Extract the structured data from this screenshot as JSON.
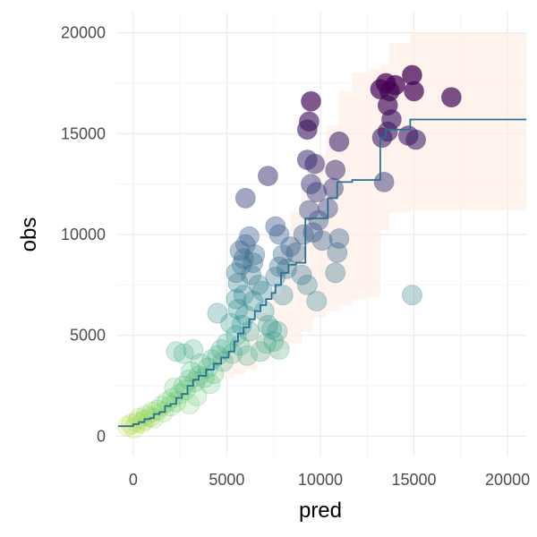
{
  "chart_data": {
    "type": "scatter",
    "title": "",
    "xlabel": "pred",
    "ylabel": "obs",
    "xlim": [
      -900,
      21000
    ],
    "ylim": [
      -1000,
      21000
    ],
    "grid": true,
    "legend": "none",
    "x_ticks": [
      0,
      5000,
      10000,
      15000,
      20000
    ],
    "y_ticks": [
      0,
      5000,
      10000,
      15000,
      20000
    ],
    "x_tick_labels": [
      "0",
      "5000",
      "10000",
      "15000",
      "20000"
    ],
    "y_tick_labels": [
      "0",
      "5000",
      "10000",
      "15000",
      "20000"
    ],
    "colors": {
      "grid_major": "#ebebeb",
      "grid_minor": "#f4f4f4",
      "step_line": "#2c6f8e",
      "band_fill": "#fdeee6",
      "scale_low": "#fde725",
      "scale_mid_low": "#5ec962",
      "scale_mid": "#21918c",
      "scale_mid_high": "#3b528b",
      "scale_high": "#440154"
    },
    "points": [
      {
        "x": -300,
        "y": 500
      },
      {
        "x": -100,
        "y": 600
      },
      {
        "x": 50,
        "y": 400
      },
      {
        "x": 200,
        "y": 700
      },
      {
        "x": 300,
        "y": 900
      },
      {
        "x": 450,
        "y": 650
      },
      {
        "x": 600,
        "y": 800
      },
      {
        "x": 700,
        "y": 1050
      },
      {
        "x": 900,
        "y": 950
      },
      {
        "x": 1000,
        "y": 1200
      },
      {
        "x": 1100,
        "y": 900
      },
      {
        "x": 1300,
        "y": 1300
      },
      {
        "x": 1500,
        "y": 1500
      },
      {
        "x": 1600,
        "y": 1200
      },
      {
        "x": 1800,
        "y": 1700
      },
      {
        "x": 2000,
        "y": 1500
      },
      {
        "x": 2100,
        "y": 1900
      },
      {
        "x": 2300,
        "y": 1700
      },
      {
        "x": 2500,
        "y": 2100
      },
      {
        "x": 2200,
        "y": 2400
      },
      {
        "x": 2700,
        "y": 2500
      },
      {
        "x": 2800,
        "y": 2300
      },
      {
        "x": 3000,
        "y": 2800
      },
      {
        "x": 3100,
        "y": 3200
      },
      {
        "x": 3300,
        "y": 2700
      },
      {
        "x": 3500,
        "y": 3000
      },
      {
        "x": 3600,
        "y": 3600
      },
      {
        "x": 3800,
        "y": 2900
      },
      {
        "x": 3400,
        "y": 2000
      },
      {
        "x": 3000,
        "y": 1600
      },
      {
        "x": 4000,
        "y": 3400
      },
      {
        "x": 4200,
        "y": 3800
      },
      {
        "x": 4300,
        "y": 3100
      },
      {
        "x": 4500,
        "y": 4000
      },
      {
        "x": 4100,
        "y": 2600
      },
      {
        "x": 2300,
        "y": 4200
      },
      {
        "x": 2700,
        "y": 4100
      },
      {
        "x": 3200,
        "y": 4300
      },
      {
        "x": 4700,
        "y": 4300
      },
      {
        "x": 4800,
        "y": 3700
      },
      {
        "x": 5000,
        "y": 4600
      },
      {
        "x": 4500,
        "y": 6100
      },
      {
        "x": 5300,
        "y": 4100
      },
      {
        "x": 5500,
        "y": 5000
      },
      {
        "x": 5700,
        "y": 4500
      },
      {
        "x": 5200,
        "y": 5600
      },
      {
        "x": 5800,
        "y": 5500
      },
      {
        "x": 5600,
        "y": 6300
      },
      {
        "x": 5500,
        "y": 6800
      },
      {
        "x": 5900,
        "y": 7000
      },
      {
        "x": 6000,
        "y": 6000
      },
      {
        "x": 6200,
        "y": 5200
      },
      {
        "x": 6400,
        "y": 6700
      },
      {
        "x": 6100,
        "y": 4000
      },
      {
        "x": 5600,
        "y": 7600
      },
      {
        "x": 5500,
        "y": 8100
      },
      {
        "x": 5800,
        "y": 8500
      },
      {
        "x": 5700,
        "y": 9200
      },
      {
        "x": 6000,
        "y": 9500
      },
      {
        "x": 5900,
        "y": 8800
      },
      {
        "x": 6300,
        "y": 8000
      },
      {
        "x": 6400,
        "y": 8600
      },
      {
        "x": 6200,
        "y": 9900
      },
      {
        "x": 6500,
        "y": 9000
      },
      {
        "x": 6700,
        "y": 7500
      },
      {
        "x": 6900,
        "y": 7200
      },
      {
        "x": 7000,
        "y": 6200
      },
      {
        "x": 7200,
        "y": 5500
      },
      {
        "x": 7400,
        "y": 5300
      },
      {
        "x": 7500,
        "y": 4700
      },
      {
        "x": 7700,
        "y": 5200
      },
      {
        "x": 7800,
        "y": 4300
      },
      {
        "x": 6800,
        "y": 4200
      },
      {
        "x": 7100,
        "y": 4600
      },
      {
        "x": 8000,
        "y": 7000
      },
      {
        "x": 7600,
        "y": 7900
      },
      {
        "x": 7800,
        "y": 8400
      },
      {
        "x": 8000,
        "y": 9000
      },
      {
        "x": 7800,
        "y": 10000
      },
      {
        "x": 7600,
        "y": 10400
      },
      {
        "x": 8200,
        "y": 8300
      },
      {
        "x": 8400,
        "y": 9400
      },
      {
        "x": 8700,
        "y": 9100
      },
      {
        "x": 9000,
        "y": 8000
      },
      {
        "x": 9300,
        "y": 7500
      },
      {
        "x": 9800,
        "y": 6700
      },
      {
        "x": 9100,
        "y": 10000
      },
      {
        "x": 9400,
        "y": 11200
      },
      {
        "x": 9600,
        "y": 10100
      },
      {
        "x": 9800,
        "y": 12100
      },
      {
        "x": 9900,
        "y": 10700
      },
      {
        "x": 10100,
        "y": 9700
      },
      {
        "x": 10400,
        "y": 11300
      },
      {
        "x": 10700,
        "y": 12300
      },
      {
        "x": 10800,
        "y": 13200
      },
      {
        "x": 11000,
        "y": 9800
      },
      {
        "x": 10900,
        "y": 9100
      },
      {
        "x": 10800,
        "y": 8100
      },
      {
        "x": 9500,
        "y": 12500
      },
      {
        "x": 9700,
        "y": 13500
      },
      {
        "x": 9300,
        "y": 13700
      },
      {
        "x": 9300,
        "y": 15200
      },
      {
        "x": 9400,
        "y": 15600
      },
      {
        "x": 9500,
        "y": 16600
      },
      {
        "x": 7200,
        "y": 12900
      },
      {
        "x": 6000,
        "y": 11800
      },
      {
        "x": 11000,
        "y": 14600
      },
      {
        "x": 13200,
        "y": 17200
      },
      {
        "x": 13500,
        "y": 17500
      },
      {
        "x": 13700,
        "y": 17100
      },
      {
        "x": 14000,
        "y": 17400
      },
      {
        "x": 13600,
        "y": 16400
      },
      {
        "x": 13800,
        "y": 15700
      },
      {
        "x": 14900,
        "y": 17900
      },
      {
        "x": 15000,
        "y": 17100
      },
      {
        "x": 13300,
        "y": 14800
      },
      {
        "x": 13600,
        "y": 15100
      },
      {
        "x": 14700,
        "y": 14900
      },
      {
        "x": 15100,
        "y": 14700
      },
      {
        "x": 13400,
        "y": 12600
      },
      {
        "x": 17000,
        "y": 16800
      },
      {
        "x": 14900,
        "y": 7000
      }
    ],
    "fit_line_steps": [
      [
        -800,
        500
      ],
      [
        0,
        600
      ],
      [
        300,
        700
      ],
      [
        600,
        850
      ],
      [
        900,
        900
      ],
      [
        1100,
        1100
      ],
      [
        1400,
        1200
      ],
      [
        1700,
        1500
      ],
      [
        2000,
        1600
      ],
      [
        2300,
        1900
      ],
      [
        2600,
        2100
      ],
      [
        2900,
        2500
      ],
      [
        3200,
        2800
      ],
      [
        3500,
        3000
      ],
      [
        3900,
        3300
      ],
      [
        4300,
        3600
      ],
      [
        4700,
        3900
      ],
      [
        5100,
        4200
      ],
      [
        5400,
        4700
      ],
      [
        5600,
        5100
      ],
      [
        5900,
        5400
      ],
      [
        6200,
        5800
      ],
      [
        6500,
        6200
      ],
      [
        6800,
        6500
      ],
      [
        7100,
        6800
      ],
      [
        7400,
        7100
      ],
      [
        7600,
        7500
      ],
      [
        7900,
        8100
      ],
      [
        8300,
        8500
      ],
      [
        8700,
        8600
      ],
      [
        9200,
        10800
      ],
      [
        9900,
        10800
      ],
      [
        10400,
        11800
      ],
      [
        10900,
        12600
      ],
      [
        11700,
        12700
      ],
      [
        12700,
        12700
      ],
      [
        13200,
        14800
      ],
      [
        13500,
        15200
      ],
      [
        14800,
        15700
      ],
      [
        21000,
        15700
      ]
    ],
    "band": [
      [
        4700,
        2900,
        4300
      ],
      [
        5400,
        3100,
        4700
      ],
      [
        6000,
        3300,
        5300
      ],
      [
        6600,
        3700,
        6100
      ],
      [
        7300,
        3900,
        7000
      ],
      [
        7900,
        4300,
        9200
      ],
      [
        8400,
        4600,
        11100
      ],
      [
        9000,
        5200,
        12500
      ],
      [
        9600,
        5900,
        13900
      ],
      [
        10300,
        6200,
        15400
      ],
      [
        11000,
        6500,
        17100
      ],
      [
        11700,
        6800,
        18000
      ],
      [
        12600,
        6900,
        18200
      ],
      [
        13200,
        10200,
        18400
      ],
      [
        13700,
        11100,
        19500
      ],
      [
        14800,
        11200,
        20000
      ],
      [
        21000,
        11200,
        20000
      ]
    ]
  }
}
